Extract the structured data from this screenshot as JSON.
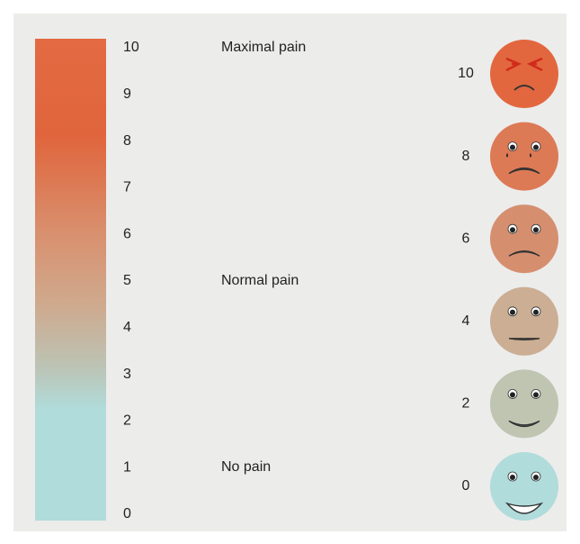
{
  "scale": {
    "ticks": [
      10,
      9,
      8,
      7,
      6,
      5,
      4,
      3,
      2,
      1,
      0
    ]
  },
  "descriptors": [
    "Maximal pain",
    "Normal pain",
    "No pain"
  ],
  "faces": [
    {
      "label": 10
    },
    {
      "label": 8
    },
    {
      "label": 6
    },
    {
      "label": 4
    },
    {
      "label": 2
    },
    {
      "label": 0
    }
  ]
}
